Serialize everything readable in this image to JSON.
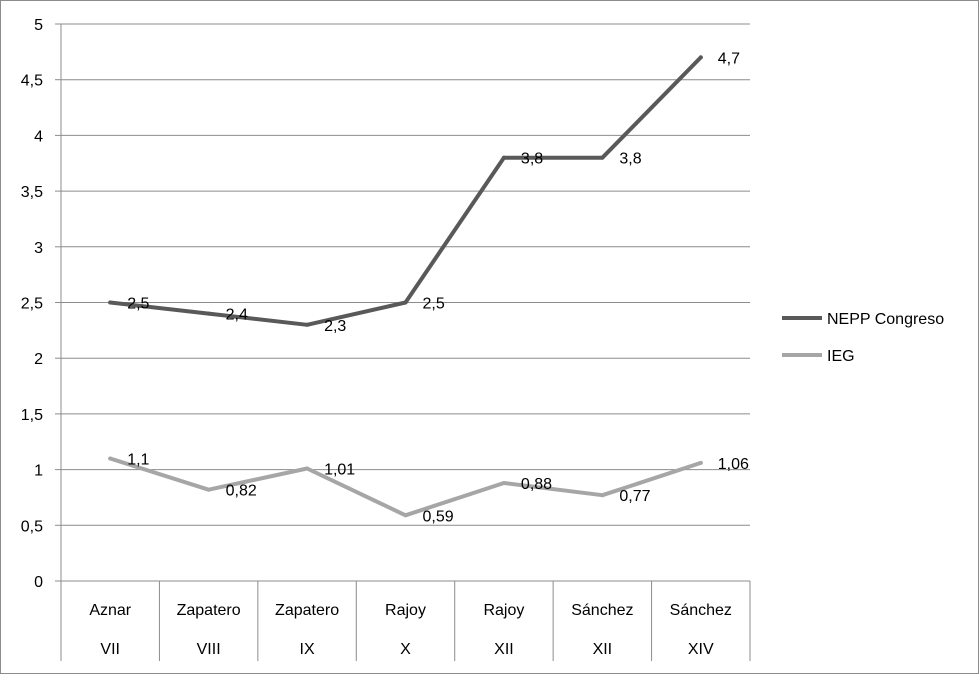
{
  "chart_data": {
    "type": "line",
    "categories": [
      [
        "Aznar",
        "VII"
      ],
      [
        "Zapatero",
        "VIII"
      ],
      [
        "Zapatero",
        "IX"
      ],
      [
        "Rajoy",
        "X"
      ],
      [
        "Rajoy",
        "XII"
      ],
      [
        "Sánchez",
        "XII"
      ],
      [
        "Sánchez",
        "XIV"
      ]
    ],
    "series": [
      {
        "name": "NEPP Congreso",
        "color": "#595959",
        "values": [
          2.5,
          2.4,
          2.3,
          2.5,
          3.8,
          3.8,
          4.7
        ],
        "labels": [
          "2,5",
          "2,4",
          "2,3",
          "2,5",
          "3,8",
          "3,8",
          "4,7"
        ]
      },
      {
        "name": "IEG",
        "color": "#a6a6a6",
        "values": [
          1.1,
          0.82,
          1.01,
          0.59,
          0.88,
          0.77,
          1.06
        ],
        "labels": [
          "1,1",
          "0,82",
          "1,01",
          "0,59",
          "0,88",
          "0,77",
          "1,06"
        ]
      }
    ],
    "ylim": [
      0,
      5
    ],
    "yticks": [
      "0",
      "0,5",
      "1",
      "1,5",
      "2",
      "2,5",
      "3",
      "3,5",
      "4",
      "4,5",
      "5"
    ],
    "grid": true,
    "legend": "right"
  }
}
